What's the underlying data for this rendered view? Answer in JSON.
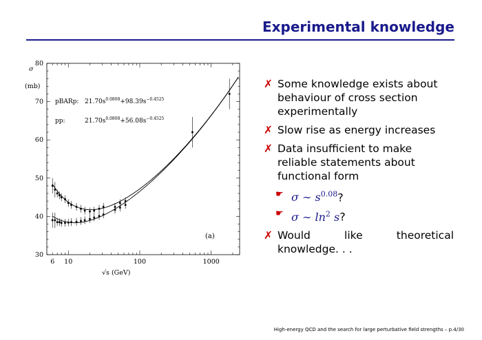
{
  "slide": {
    "title": "Experimental knowledge",
    "footer": "High-energy QCD and the search for large perturbative field strengths – p.4/30"
  },
  "plot": {
    "y_sym": "σ",
    "y_unit": "(mb)",
    "x_label": "√s   (GeV)",
    "panel_label": "(a)",
    "fit_pbarp_prefix": "pBARp:",
    "fit_pbarp_formula": "21.70s0.0808+98.39s−0.4525",
    "fit_pp_prefix": "pp:",
    "fit_pp_formula": "21.70s0.0808+56.08s−0.4525",
    "y_ticks": [
      "30",
      "40",
      "50",
      "60",
      "70",
      "80"
    ],
    "x_ticks": [
      "6",
      "10",
      "100",
      "1000"
    ]
  },
  "chart_data": {
    "type": "scatter",
    "xlabel": "√s   (GeV)",
    "ylabel": "σ (mb)",
    "xscale": "log",
    "xlim": [
      5,
      2500
    ],
    "ylim": [
      30,
      80
    ],
    "series": [
      {
        "name": "pBARp",
        "x": [
          6,
          6.5,
          7,
          7.5,
          8,
          9,
          10,
          11,
          13,
          15,
          17,
          20,
          23,
          27,
          31,
          45,
          53,
          63,
          546,
          1800
        ],
        "y": [
          48,
          47,
          46,
          45.5,
          45,
          44.5,
          43.5,
          43,
          42.5,
          42,
          41.5,
          41.3,
          41.5,
          42,
          42.5,
          42.5,
          43.5,
          44,
          62,
          72
        ]
      },
      {
        "name": "pp",
        "x": [
          6,
          6.5,
          7,
          7.5,
          8,
          9,
          10,
          11,
          13,
          15,
          17,
          20,
          23,
          27,
          31,
          45,
          53,
          63
        ],
        "y": [
          39,
          39,
          38.5,
          38.5,
          38.3,
          38.3,
          38.4,
          38.5,
          38.6,
          38.8,
          39,
          39.3,
          39.7,
          40.1,
          40.5,
          41.7,
          42.3,
          43
        ]
      }
    ]
  },
  "bullets": [
    {
      "text": "Some knowledge exists about behaviour of cross section experimentally"
    },
    {
      "text": "Slow rise as energy increases"
    },
    {
      "text": "Data insufficient to make reliable statements about functional form"
    },
    {
      "text": "Would like theoretical knowledge. . ."
    }
  ],
  "sub_bullets": [
    {
      "sym": "σ ∼ s",
      "exp": "0.08",
      "tail": "?"
    },
    {
      "sym": "σ ∼ ln",
      "exp": "2",
      "var": " s",
      "tail": "?"
    }
  ],
  "icons": {
    "bullet": "red-x-icon",
    "sub": "pointing-hand-icon"
  }
}
